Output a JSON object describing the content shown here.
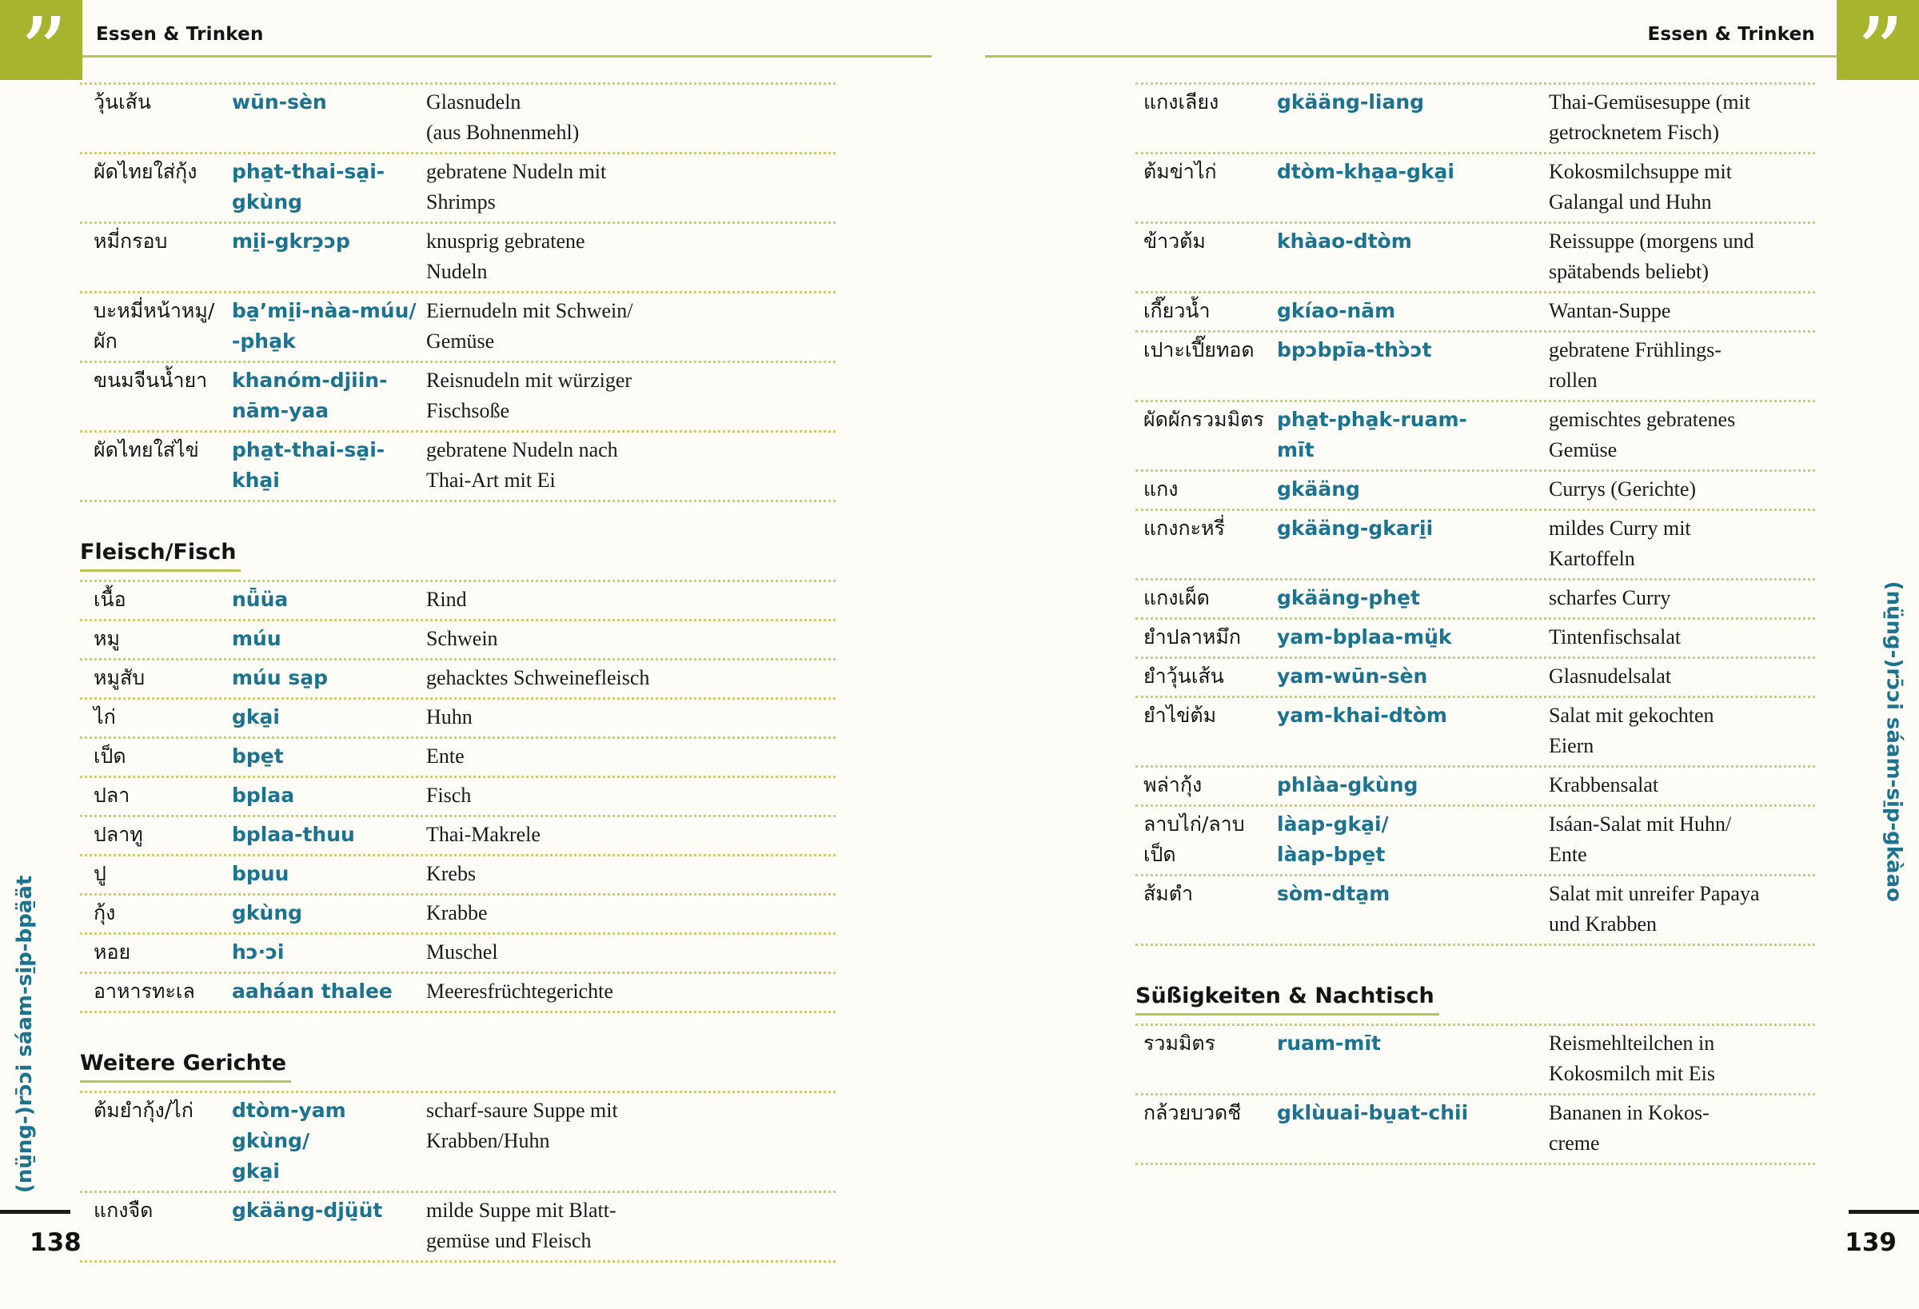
{
  "colors": {
    "accent_green": "#a7b52e",
    "rule_green": "#b9c455",
    "dotted_line_green": "#c8ce7d",
    "transliteration_teal": "#1b7390",
    "text_dark": "#1a1a1a"
  },
  "left_page": {
    "header_title": "Essen & Trinken",
    "quote_icon": "”",
    "page_number": "138",
    "sidebar_text": "(nü̱ng-)rɔ̄ɔi sáam-si̱p-bpä̱ät",
    "table1": {
      "rows": [
        {
          "thai": "วุ้นเส้น",
          "translit": "wūn-sèn",
          "german": "Glasnudeln\n(aus Bohnenmehl)"
        },
        {
          "thai": "ผัดไทยใส่กุ้ง",
          "translit": "pha̱t-thai-sa̱i-\ngkùng",
          "german": "gebratene Nudeln mit\nShrimps"
        },
        {
          "thai": "หมี่กรอบ",
          "translit": "mi̱i-gkrɔ̱ɔp",
          "german": "knusprig gebratene\nNudeln"
        },
        {
          "thai": "บะหมี่หน้าหมู/\nผัก",
          "translit": "ba̱’mi̱i-nàa-múu/\n-pha̱k",
          "german": "Eiernudeln mit Schwein/\nGemüse"
        },
        {
          "thai": "ขนมจีนน้ำยา",
          "translit": "khanóm-djiin-\nnām-yaa",
          "german": "Reisnudeln mit würziger\nFischsoße"
        },
        {
          "thai": "ผัดไทยใส่ไข่",
          "translit": "pha̱t-thai-sa̱i-\nkha̱i",
          "german": "gebratene Nudeln nach\nThai-Art mit Ei"
        }
      ]
    },
    "section1_title": "Fleisch/Fisch",
    "table2": {
      "rows": [
        {
          "thai": "เนื้อ",
          "translit": "nǖüa",
          "german": "Rind"
        },
        {
          "thai": "หมู",
          "translit": "múu",
          "german": "Schwein"
        },
        {
          "thai": "หมูสับ",
          "translit": "múu sa̱p",
          "german": "gehacktes Schweinefleisch"
        },
        {
          "thai": "ไก่",
          "translit": "gka̱i",
          "german": "Huhn"
        },
        {
          "thai": "เป็ด",
          "translit": "bpe̱t",
          "german": "Ente"
        },
        {
          "thai": "ปลา",
          "translit": "bplaa",
          "german": "Fisch"
        },
        {
          "thai": "ปลาทู",
          "translit": "bplaa-thuu",
          "german": "Thai-Makrele"
        },
        {
          "thai": "ปู",
          "translit": "bpuu",
          "german": "Krebs"
        },
        {
          "thai": "กุ้ง",
          "translit": "gkùng",
          "german": "Krabbe"
        },
        {
          "thai": "หอย",
          "translit": "hɔ·ɔi",
          "german": "Muschel"
        },
        {
          "thai": "อาหารทะเล",
          "translit": "aaháan thalee",
          "german": "Meeresfrüchtegerichte"
        }
      ]
    },
    "section2_title": "Weitere Gerichte",
    "table3": {
      "rows": [
        {
          "thai": "ต้มยำกุ้ง/ไก่",
          "translit": "dtòm-yam gkùng/\ngka̱i",
          "german": "scharf-saure Suppe mit\nKrabben/Huhn"
        },
        {
          "thai": "แกงจืด",
          "translit": "gkääng-djü̱üt",
          "german": "milde Suppe mit Blatt-\ngemüse und Fleisch"
        }
      ]
    }
  },
  "right_page": {
    "header_title": "Essen & Trinken",
    "quote_icon": "”",
    "page_number": "139",
    "sidebar_text": "(nü̱ng-)rɔ̄ɔi sáam-si̱p-gkàao",
    "table1": {
      "rows": [
        {
          "thai": "แกงเลียง",
          "translit": "gkääng-liang",
          "german": "Thai-Gemüsesuppe (mit\ngetrocknetem Fisch)"
        },
        {
          "thai": "ต้มข่าไก่",
          "translit": "dtòm-kha̱a-gka̱i",
          "german": "Kokosmilchsuppe mit\nGalangal und Huhn"
        },
        {
          "thai": "ข้าวต้ม",
          "translit": "khàao-dtòm",
          "german": "Reissuppe (morgens und\nspätabends beliebt)"
        },
        {
          "thai": "เกี๊ยวน้ำ",
          "translit": "gkíao-nām",
          "german": "Wantan-Suppe"
        },
        {
          "thai": "เปาะเปี๊ยทอด",
          "translit": "bpɔbpīa-thɔ̀ɔt",
          "german": "gebratene Frühlings-\nrollen"
        },
        {
          "thai": "ผัดผักรวมมิตร",
          "translit": "pha̱t-pha̱k-ruam-\nmīt",
          "german": "gemischtes gebratenes\nGemüse"
        },
        {
          "thai": "แกง",
          "translit": "gkääng",
          "german": "Currys (Gerichte)"
        },
        {
          "thai": "แกงกะหรี่",
          "translit": "gkääng-gkari̱i",
          "german": "mildes Curry mit\nKartoffeln"
        },
        {
          "thai": "แกงเผ็ด",
          "translit": "gkääng-phe̱t",
          "german": "scharfes Curry"
        },
        {
          "thai": "ยำปลาหมึก",
          "translit": "yam-bplaa-mü̱k",
          "german": "Tintenfischsalat"
        },
        {
          "thai": "ยำวุ้นเส้น",
          "translit": "yam-wūn-sèn",
          "german": "Glasnudelsalat"
        },
        {
          "thai": "ยำไข่ต้ม",
          "translit": "yam-khai-dtòm",
          "german": "Salat mit gekochten\nEiern"
        },
        {
          "thai": "พล่ากุ้ง",
          "translit": "phlàa-gkùng",
          "german": "Krabbensalat"
        },
        {
          "thai": "ลาบไก่/ลาบเป็ด",
          "translit": "làap-gka̱i/\nlàap-bpe̱t",
          "german": "Isáan-Salat mit Huhn/\nEnte"
        },
        {
          "thai": "ส้มตำ",
          "translit": "sòm-dta̱m",
          "german": "Salat mit unreifer Papaya\nund Krabben"
        }
      ]
    },
    "section1_title": "Süßigkeiten & Nachtisch",
    "table2": {
      "rows": [
        {
          "thai": "รวมมิตร",
          "translit": "ruam-mīt",
          "german": "Reismehlteilchen in\nKokosmilch mit Eis"
        },
        {
          "thai": "กล้วยบวดชี",
          "translit": "gklùuai-bu̱at-chii",
          "german": "Bananen in Kokos-\ncreme"
        }
      ]
    }
  }
}
